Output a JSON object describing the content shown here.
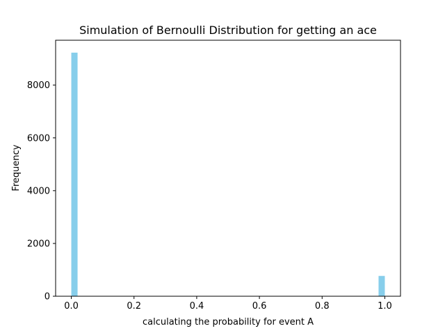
{
  "chart_data": {
    "type": "bar",
    "title": "Simulation of Bernoulli Distribution for getting an ace",
    "xlabel": "calculating the probability for event A",
    "ylabel": "Frequency",
    "xlim": [
      -0.05,
      1.05
    ],
    "ylim": [
      0,
      9700
    ],
    "xticks": [
      0.0,
      0.2,
      0.4,
      0.6,
      0.8,
      1.0
    ],
    "xtick_labels": [
      "0.0",
      "0.2",
      "0.4",
      "0.6",
      "0.8",
      "1.0"
    ],
    "yticks": [
      0,
      2000,
      4000,
      6000,
      8000
    ],
    "ytick_labels": [
      "0",
      "2000",
      "4000",
      "6000",
      "8000"
    ],
    "bins": [
      {
        "x0": 0.0,
        "x1": 0.02,
        "value": 9230
      },
      {
        "x0": 0.98,
        "x1": 1.0,
        "value": 770
      }
    ],
    "bar_color": "#87CEEB",
    "grid": false,
    "legend": "none"
  }
}
